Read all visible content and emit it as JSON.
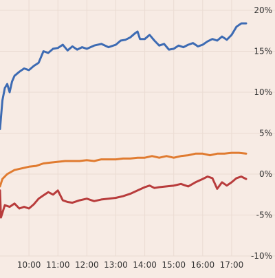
{
  "chart_data": {
    "type": "line",
    "title": "",
    "xlabel": "",
    "ylabel": "",
    "x_axis": {
      "type": "time",
      "range": [
        "09:00",
        "17:30"
      ],
      "ticks": [
        "10:00",
        "11:00",
        "12:00",
        "13:00",
        "14:00",
        "15:00",
        "16:00",
        "17:00"
      ]
    },
    "y_axis": {
      "position": "right",
      "range": [
        -10,
        20
      ],
      "unit": "%",
      "ticks": [
        -10,
        -5,
        0,
        5,
        10,
        15,
        20
      ],
      "tick_labels": [
        "-10%",
        "-5%",
        "0%",
        "5%",
        "10%",
        "15%",
        "20%"
      ]
    },
    "grid": true,
    "legend": "none",
    "series": [
      {
        "color": "#3d6bb3",
        "points": [
          [
            "09:00",
            5.5
          ],
          [
            "09:05",
            9.0
          ],
          [
            "09:10",
            10.5
          ],
          [
            "09:15",
            11.0
          ],
          [
            "09:20",
            10.0
          ],
          [
            "09:25",
            11.3
          ],
          [
            "09:30",
            12.0
          ],
          [
            "09:40",
            12.5
          ],
          [
            "09:50",
            12.9
          ],
          [
            "10:00",
            12.7
          ],
          [
            "10:10",
            13.2
          ],
          [
            "10:20",
            13.6
          ],
          [
            "10:30",
            15.0
          ],
          [
            "10:40",
            14.8
          ],
          [
            "10:50",
            15.3
          ],
          [
            "11:00",
            15.4
          ],
          [
            "11:10",
            15.8
          ],
          [
            "11:20",
            15.1
          ],
          [
            "11:30",
            15.6
          ],
          [
            "11:40",
            15.2
          ],
          [
            "11:50",
            15.5
          ],
          [
            "12:00",
            15.3
          ],
          [
            "12:15",
            15.7
          ],
          [
            "12:30",
            15.9
          ],
          [
            "12:45",
            15.5
          ],
          [
            "13:00",
            15.8
          ],
          [
            "13:10",
            16.3
          ],
          [
            "13:20",
            16.4
          ],
          [
            "13:30",
            16.7
          ],
          [
            "13:40",
            17.2
          ],
          [
            "13:45",
            17.4
          ],
          [
            "13:50",
            16.5
          ],
          [
            "14:00",
            16.5
          ],
          [
            "14:10",
            17.0
          ],
          [
            "14:20",
            16.3
          ],
          [
            "14:30",
            15.7
          ],
          [
            "14:40",
            15.9
          ],
          [
            "14:50",
            15.2
          ],
          [
            "15:00",
            15.3
          ],
          [
            "15:10",
            15.7
          ],
          [
            "15:20",
            15.5
          ],
          [
            "15:30",
            15.8
          ],
          [
            "15:40",
            16.0
          ],
          [
            "15:50",
            15.6
          ],
          [
            "16:00",
            15.8
          ],
          [
            "16:10",
            16.2
          ],
          [
            "16:20",
            16.5
          ],
          [
            "16:30",
            16.3
          ],
          [
            "16:40",
            16.8
          ],
          [
            "16:50",
            16.4
          ],
          [
            "17:00",
            17.0
          ],
          [
            "17:10",
            18.0
          ],
          [
            "17:20",
            18.4
          ],
          [
            "17:30",
            18.4
          ]
        ]
      },
      {
        "color": "#e07b30",
        "points": [
          [
            "09:00",
            -1.5
          ],
          [
            "09:05",
            -0.6
          ],
          [
            "09:15",
            0.0
          ],
          [
            "09:30",
            0.5
          ],
          [
            "09:45",
            0.7
          ],
          [
            "10:00",
            0.9
          ],
          [
            "10:15",
            1.0
          ],
          [
            "10:30",
            1.3
          ],
          [
            "10:45",
            1.4
          ],
          [
            "11:00",
            1.5
          ],
          [
            "11:15",
            1.6
          ],
          [
            "11:30",
            1.6
          ],
          [
            "11:45",
            1.6
          ],
          [
            "12:00",
            1.7
          ],
          [
            "12:15",
            1.6
          ],
          [
            "12:30",
            1.8
          ],
          [
            "12:45",
            1.8
          ],
          [
            "13:00",
            1.8
          ],
          [
            "13:15",
            1.9
          ],
          [
            "13:30",
            1.9
          ],
          [
            "13:45",
            2.0
          ],
          [
            "14:00",
            2.0
          ],
          [
            "14:15",
            2.2
          ],
          [
            "14:30",
            2.0
          ],
          [
            "14:45",
            2.2
          ],
          [
            "15:00",
            2.0
          ],
          [
            "15:15",
            2.2
          ],
          [
            "15:30",
            2.3
          ],
          [
            "15:45",
            2.5
          ],
          [
            "16:00",
            2.5
          ],
          [
            "16:15",
            2.3
          ],
          [
            "16:30",
            2.5
          ],
          [
            "16:45",
            2.5
          ],
          [
            "17:00",
            2.6
          ],
          [
            "17:15",
            2.6
          ],
          [
            "17:30",
            2.5
          ]
        ]
      },
      {
        "color": "#b83c3c",
        "points": [
          [
            "09:00",
            -2.0
          ],
          [
            "09:02",
            -5.3
          ],
          [
            "09:10",
            -3.8
          ],
          [
            "09:20",
            -4.0
          ],
          [
            "09:30",
            -3.6
          ],
          [
            "09:40",
            -4.2
          ],
          [
            "09:50",
            -4.0
          ],
          [
            "10:00",
            -4.2
          ],
          [
            "10:10",
            -3.7
          ],
          [
            "10:20",
            -3.0
          ],
          [
            "10:30",
            -2.6
          ],
          [
            "10:40",
            -2.2
          ],
          [
            "10:50",
            -2.5
          ],
          [
            "11:00",
            -2.0
          ],
          [
            "11:10",
            -3.2
          ],
          [
            "11:20",
            -3.4
          ],
          [
            "11:30",
            -3.5
          ],
          [
            "11:45",
            -3.2
          ],
          [
            "12:00",
            -3.0
          ],
          [
            "12:15",
            -3.3
          ],
          [
            "12:30",
            -3.1
          ],
          [
            "12:45",
            -3.0
          ],
          [
            "13:00",
            -2.9
          ],
          [
            "13:15",
            -2.7
          ],
          [
            "13:30",
            -2.4
          ],
          [
            "13:45",
            -2.0
          ],
          [
            "14:00",
            -1.6
          ],
          [
            "14:10",
            -1.4
          ],
          [
            "14:20",
            -1.7
          ],
          [
            "14:30",
            -1.6
          ],
          [
            "14:45",
            -1.5
          ],
          [
            "15:00",
            -1.4
          ],
          [
            "15:15",
            -1.2
          ],
          [
            "15:30",
            -1.5
          ],
          [
            "15:45",
            -1.0
          ],
          [
            "16:00",
            -0.6
          ],
          [
            "16:10",
            -0.3
          ],
          [
            "16:20",
            -0.5
          ],
          [
            "16:30",
            -1.8
          ],
          [
            "16:40",
            -1.0
          ],
          [
            "16:50",
            -1.4
          ],
          [
            "17:00",
            -1.0
          ],
          [
            "17:10",
            -0.5
          ],
          [
            "17:20",
            -0.3
          ],
          [
            "17:30",
            -0.6
          ]
        ]
      }
    ]
  }
}
